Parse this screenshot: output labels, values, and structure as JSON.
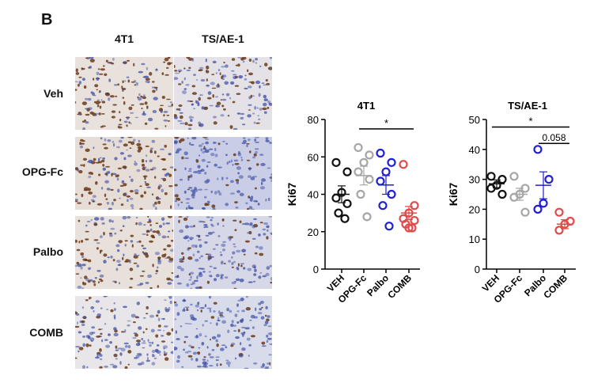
{
  "panel_letter": "B",
  "micrographs": {
    "columns": [
      "4T1",
      "TS/AE-1"
    ],
    "rows": [
      "Veh",
      "OPG-Fc",
      "Palbo",
      "COMB"
    ]
  },
  "colors": {
    "VEH": "#111111",
    "OPG-Fc": "#a6a6a6",
    "Palbo": "#2020d0",
    "COMB": "#e04a4a",
    "stain_brown": "#6b3a1a",
    "stain_blue": "#3f4fa6"
  },
  "chart_data": [
    {
      "type": "scatter",
      "title": "4T1",
      "ylabel": "Ki67",
      "categories": [
        "VEH",
        "OPG-Fc",
        "Palbo",
        "COMB"
      ],
      "ylim": [
        0,
        80
      ],
      "yticks": [
        0,
        20,
        40,
        60,
        80
      ],
      "series": [
        {
          "category": "VEH",
          "points": [
            57,
            52,
            41,
            38,
            35,
            30,
            27
          ],
          "mean": 40,
          "sem": 4.5
        },
        {
          "category": "OPG-Fc",
          "points": [
            65,
            61,
            57,
            52,
            48,
            40,
            28
          ],
          "mean": 50,
          "sem": 5
        },
        {
          "category": "Palbo",
          "points": [
            62,
            57,
            52,
            47,
            40,
            34,
            23
          ],
          "mean": 45,
          "sem": 5
        },
        {
          "category": "COMB",
          "points": [
            56,
            34,
            30,
            27,
            26,
            24,
            22,
            22
          ],
          "mean": 30,
          "sem": 3.5
        }
      ],
      "annotations": [
        {
          "text": "*",
          "from": "OPG-Fc",
          "to": "COMB",
          "y": 75
        }
      ]
    },
    {
      "type": "scatter",
      "title": "TS/AE-1",
      "ylabel": "Ki67",
      "categories": [
        "VEH",
        "OPG-Fc",
        "Palbo",
        "COMB"
      ],
      "ylim": [
        0,
        50
      ],
      "yticks": [
        0,
        10,
        20,
        30,
        40,
        50
      ],
      "series": [
        {
          "category": "VEH",
          "points": [
            31,
            30,
            28,
            27,
            25
          ],
          "mean": 28.5,
          "sem": 1.3
        },
        {
          "category": "OPG-Fc",
          "points": [
            31,
            27,
            25,
            24,
            19
          ],
          "mean": 25,
          "sem": 2
        },
        {
          "category": "Palbo",
          "points": [
            40,
            30,
            22,
            20
          ],
          "mean": 28,
          "sem": 4.5
        },
        {
          "category": "COMB",
          "points": [
            19,
            16,
            15,
            13
          ],
          "mean": 15,
          "sem": 1.5
        }
      ],
      "annotations": [
        {
          "text": "*",
          "from": "VEH",
          "to": "COMB",
          "y": 47.5
        },
        {
          "text": "0.058",
          "from": "Palbo",
          "to": "COMB",
          "y": 42
        }
      ]
    }
  ]
}
